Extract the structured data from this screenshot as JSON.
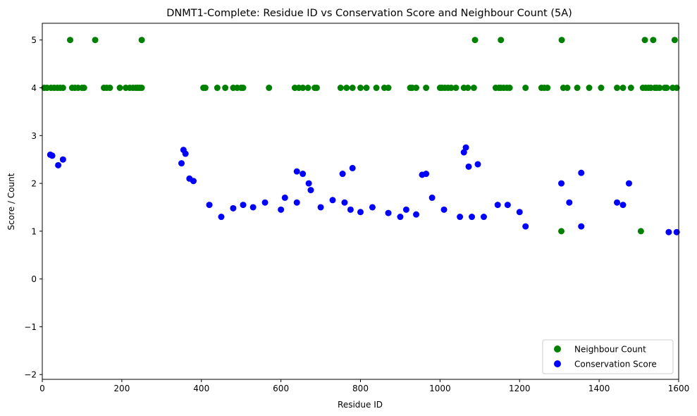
{
  "chart_data": {
    "type": "scatter",
    "title": "DNMT1-Complete: Residue ID vs Conservation Score and Neighbour Count (5A)",
    "xlabel": "Residue ID",
    "ylabel": "Score / Count",
    "xlim": [
      0,
      1600
    ],
    "ylim": [
      -2.1,
      5.35
    ],
    "xticks": [
      "0",
      "200",
      "400",
      "600",
      "800",
      "1000",
      "1200",
      "1400",
      "1600"
    ],
    "yticks": [
      "−2",
      "−1",
      "0",
      "1",
      "2",
      "3",
      "4",
      "5"
    ],
    "grid": false,
    "legend": "lower-right",
    "series": [
      {
        "name": "Neighbour Count",
        "color": "#008000",
        "points": [
          [
            70,
            5
          ],
          [
            133,
            5
          ],
          [
            250,
            5
          ],
          [
            1088,
            5
          ],
          [
            1153,
            5
          ],
          [
            1306,
            5
          ],
          [
            1515,
            5
          ],
          [
            1536,
            5
          ],
          [
            1590,
            5
          ],
          [
            5,
            4
          ],
          [
            12,
            4
          ],
          [
            22,
            4
          ],
          [
            30,
            4
          ],
          [
            38,
            4
          ],
          [
            45,
            4
          ],
          [
            52,
            4
          ],
          [
            75,
            4
          ],
          [
            82,
            4
          ],
          [
            90,
            4
          ],
          [
            100,
            4
          ],
          [
            105,
            4
          ],
          [
            155,
            4
          ],
          [
            162,
            4
          ],
          [
            170,
            4
          ],
          [
            195,
            4
          ],
          [
            210,
            4
          ],
          [
            220,
            4
          ],
          [
            228,
            4
          ],
          [
            235,
            4
          ],
          [
            240,
            4
          ],
          [
            245,
            4
          ],
          [
            250,
            4
          ],
          [
            405,
            4
          ],
          [
            410,
            4
          ],
          [
            440,
            4
          ],
          [
            460,
            4
          ],
          [
            480,
            4
          ],
          [
            490,
            4
          ],
          [
            500,
            4
          ],
          [
            505,
            4
          ],
          [
            570,
            4
          ],
          [
            635,
            4
          ],
          [
            645,
            4
          ],
          [
            655,
            4
          ],
          [
            668,
            4
          ],
          [
            685,
            4
          ],
          [
            690,
            4
          ],
          [
            750,
            4
          ],
          [
            765,
            4
          ],
          [
            780,
            4
          ],
          [
            800,
            4
          ],
          [
            815,
            4
          ],
          [
            840,
            4
          ],
          [
            860,
            4
          ],
          [
            870,
            4
          ],
          [
            925,
            4
          ],
          [
            930,
            4
          ],
          [
            940,
            4
          ],
          [
            965,
            4
          ],
          [
            1000,
            4
          ],
          [
            1005,
            4
          ],
          [
            1012,
            4
          ],
          [
            1020,
            4
          ],
          [
            1028,
            4
          ],
          [
            1040,
            4
          ],
          [
            1060,
            4
          ],
          [
            1070,
            4
          ],
          [
            1085,
            4
          ],
          [
            1140,
            4
          ],
          [
            1148,
            4
          ],
          [
            1153,
            4
          ],
          [
            1160,
            4
          ],
          [
            1168,
            4
          ],
          [
            1175,
            4
          ],
          [
            1215,
            4
          ],
          [
            1255,
            4
          ],
          [
            1262,
            4
          ],
          [
            1270,
            4
          ],
          [
            1310,
            4
          ],
          [
            1320,
            4
          ],
          [
            1345,
            4
          ],
          [
            1375,
            4
          ],
          [
            1405,
            4
          ],
          [
            1445,
            4
          ],
          [
            1460,
            4
          ],
          [
            1480,
            4
          ],
          [
            1510,
            4
          ],
          [
            1517,
            4
          ],
          [
            1524,
            4
          ],
          [
            1530,
            4
          ],
          [
            1540,
            4
          ],
          [
            1545,
            4
          ],
          [
            1552,
            4
          ],
          [
            1565,
            4
          ],
          [
            1570,
            4
          ],
          [
            1585,
            4
          ],
          [
            1595,
            4
          ],
          [
            1305,
            1
          ],
          [
            1505,
            1
          ]
        ]
      },
      {
        "name": "Conservation Score",
        "color": "#0000ff",
        "points": [
          [
            20,
            2.6
          ],
          [
            25,
            2.58
          ],
          [
            40,
            2.38
          ],
          [
            52,
            2.5
          ],
          [
            355,
            2.7
          ],
          [
            360,
            2.62
          ],
          [
            370,
            2.1
          ],
          [
            380,
            2.05
          ],
          [
            350,
            2.42
          ],
          [
            640,
            2.25
          ],
          [
            655,
            2.2
          ],
          [
            670,
            2.0
          ],
          [
            675,
            1.86
          ],
          [
            755,
            2.2
          ],
          [
            780,
            2.32
          ],
          [
            955,
            2.18
          ],
          [
            965,
            2.2
          ],
          [
            1060,
            2.65
          ],
          [
            1065,
            2.75
          ],
          [
            1072,
            2.35
          ],
          [
            1095,
            2.4
          ],
          [
            1355,
            2.22
          ],
          [
            1305,
            2.0
          ],
          [
            1475,
            2.0
          ],
          [
            420,
            1.55
          ],
          [
            450,
            1.3
          ],
          [
            480,
            1.48
          ],
          [
            505,
            1.55
          ],
          [
            530,
            1.5
          ],
          [
            560,
            1.6
          ],
          [
            600,
            1.45
          ],
          [
            610,
            1.7
          ],
          [
            640,
            1.6
          ],
          [
            700,
            1.5
          ],
          [
            730,
            1.65
          ],
          [
            760,
            1.6
          ],
          [
            775,
            1.45
          ],
          [
            800,
            1.4
          ],
          [
            830,
            1.5
          ],
          [
            870,
            1.38
          ],
          [
            900,
            1.3
          ],
          [
            915,
            1.45
          ],
          [
            940,
            1.35
          ],
          [
            980,
            1.7
          ],
          [
            1010,
            1.45
          ],
          [
            1050,
            1.3
          ],
          [
            1080,
            1.3
          ],
          [
            1110,
            1.3
          ],
          [
            1145,
            1.55
          ],
          [
            1170,
            1.55
          ],
          [
            1200,
            1.4
          ],
          [
            1215,
            1.1
          ],
          [
            1325,
            1.6
          ],
          [
            1355,
            1.1
          ],
          [
            1445,
            1.6
          ],
          [
            1460,
            1.55
          ],
          [
            1575,
            0.98
          ],
          [
            1595,
            0.98
          ]
        ]
      }
    ]
  },
  "legend": {
    "items": [
      {
        "label": "Neighbour Count",
        "color": "#008000"
      },
      {
        "label": "Conservation Score",
        "color": "#0000ff"
      }
    ]
  }
}
